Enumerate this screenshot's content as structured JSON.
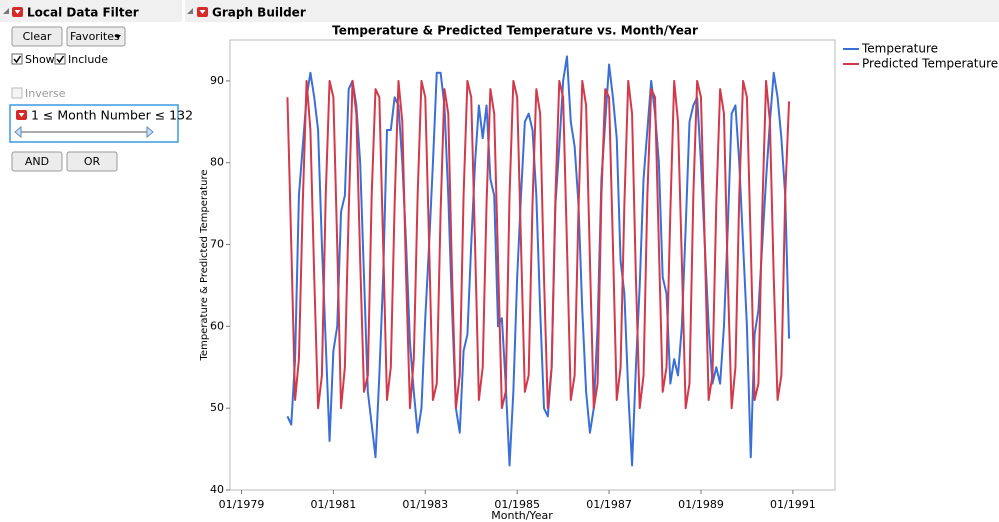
{
  "filter_panel": {
    "title": "Local Data Filter",
    "buttons": [
      "Clear",
      "Favorites"
    ],
    "show": "Show",
    "include": "Include",
    "inverse": "Inverse",
    "condition": "1 ≤ Month Number  ≤ 132",
    "logic_buttons": [
      "AND",
      "OR"
    ]
  },
  "graph_panel": {
    "title": "Graph Builder"
  },
  "chart_data": {
    "type": "line",
    "title": "Temperature & Predicted Temperature vs. Month/Year",
    "xlabel": "Month/Year",
    "ylabel": "Temperature & Predicted Temperature",
    "x": [
      "01/1980",
      "02/1980",
      "03/1980",
      "04/1980",
      "05/1980",
      "06/1980",
      "07/1980",
      "08/1980",
      "09/1980",
      "10/1980",
      "11/1980",
      "12/1980",
      "01/1981",
      "02/1981",
      "03/1981",
      "04/1981",
      "05/1981",
      "06/1981",
      "07/1981",
      "08/1981",
      "09/1981",
      "10/1981",
      "11/1981",
      "12/1981",
      "01/1982",
      "02/1982",
      "03/1982",
      "04/1982",
      "05/1982",
      "06/1982",
      "07/1982",
      "08/1982",
      "09/1982",
      "10/1982",
      "11/1982",
      "12/1982",
      "01/1983",
      "02/1983",
      "03/1983",
      "04/1983",
      "05/1983",
      "06/1983",
      "07/1983",
      "08/1983",
      "09/1983",
      "10/1983",
      "11/1983",
      "12/1983",
      "01/1984",
      "02/1984",
      "03/1984",
      "04/1984",
      "05/1984",
      "06/1984",
      "07/1984",
      "08/1984",
      "09/1984",
      "10/1984",
      "11/1984",
      "12/1984",
      "01/1985",
      "02/1985",
      "03/1985",
      "04/1985",
      "05/1985",
      "06/1985",
      "07/1985",
      "08/1985",
      "09/1985",
      "10/1985",
      "11/1985",
      "12/1985",
      "01/1986",
      "02/1986",
      "03/1986",
      "04/1986",
      "05/1986",
      "06/1986",
      "07/1986",
      "08/1986",
      "09/1986",
      "10/1986",
      "11/1986",
      "12/1986",
      "01/1987",
      "02/1987",
      "03/1987",
      "04/1987",
      "05/1987",
      "06/1987",
      "07/1987",
      "08/1987",
      "09/1987",
      "10/1987",
      "11/1987",
      "12/1987",
      "01/1988",
      "02/1988",
      "03/1988",
      "04/1988",
      "05/1988",
      "06/1988",
      "07/1988",
      "08/1988",
      "09/1988",
      "10/1988",
      "11/1988",
      "12/1988",
      "01/1989",
      "02/1989",
      "03/1989",
      "04/1989",
      "05/1989",
      "06/1989",
      "07/1989",
      "08/1989",
      "09/1989",
      "10/1989",
      "11/1989",
      "12/1989",
      "01/1990",
      "02/1990",
      "03/1990",
      "04/1990",
      "05/1990",
      "06/1990",
      "07/1990",
      "08/1990",
      "09/1990",
      "10/1990",
      "11/1990",
      "12/1990"
    ],
    "xlim": [
      "10/1978",
      "12/1991"
    ],
    "xticks": [
      "01/1979",
      "01/1981",
      "01/1983",
      "01/1985",
      "01/1987",
      "01/1989",
      "01/1991"
    ],
    "ylim": [
      40,
      95
    ],
    "yticks": [
      40,
      50,
      60,
      70,
      80,
      90
    ],
    "legend": "right",
    "series": [
      {
        "name": "Temperature",
        "color": "#3b6fd8",
        "values": [
          49,
          48,
          56,
          76,
          82,
          88,
          91,
          88,
          84,
          70,
          58,
          46,
          57,
          60,
          74,
          76,
          89,
          90,
          87,
          80,
          66,
          52,
          48,
          44,
          54,
          66,
          84,
          84,
          88,
          87,
          80,
          70,
          58,
          52,
          47,
          50,
          61,
          70,
          80,
          91,
          91,
          87,
          76,
          62,
          50,
          47,
          57,
          59,
          70,
          80,
          87,
          83,
          87,
          78,
          76,
          60,
          61,
          53,
          43,
          52,
          66,
          76,
          85,
          86,
          84,
          76,
          62,
          50,
          49,
          55,
          75,
          82,
          90,
          93,
          85,
          82,
          75,
          62,
          52,
          47,
          50,
          60,
          78,
          85,
          92,
          88,
          83,
          68,
          64,
          52,
          43,
          55,
          65,
          78,
          84,
          90,
          86,
          80,
          66,
          64,
          53,
          56,
          54,
          60,
          72,
          85,
          87,
          88,
          80,
          70,
          60,
          53,
          55,
          53,
          60,
          72,
          86,
          87,
          80,
          70,
          60,
          44,
          59,
          62,
          70,
          78,
          85,
          91,
          88,
          83,
          76,
          58.5
        ]
      },
      {
        "name": "Predicted Temperature",
        "color": "#d23a4c",
        "values": [
          88,
          70,
          51,
          56,
          75,
          90,
          84,
          66,
          50,
          54,
          76,
          90,
          88,
          70,
          50,
          55,
          74,
          90,
          86,
          68,
          52,
          54,
          76,
          89,
          88,
          70,
          51,
          55,
          75,
          90,
          85,
          66,
          50,
          56,
          76,
          90,
          88,
          70,
          51,
          53,
          74,
          89,
          86,
          66,
          50,
          54,
          76,
          90,
          88,
          70,
          51,
          55,
          75,
          89,
          86,
          68,
          50,
          52,
          76,
          90,
          88,
          70,
          52,
          54,
          75,
          89,
          86,
          66,
          50,
          55,
          76,
          90,
          88,
          70,
          51,
          54,
          74,
          90,
          87,
          68,
          50,
          53,
          76,
          89,
          88,
          70,
          51,
          55,
          75,
          90,
          86,
          66,
          50,
          54,
          76,
          89,
          88,
          70,
          52,
          55,
          74,
          90,
          85,
          68,
          50,
          53,
          76,
          90,
          88,
          70,
          51,
          54,
          75,
          89,
          86,
          66,
          50,
          55,
          76,
          90,
          88,
          70,
          51,
          53,
          74,
          90,
          85,
          66,
          51,
          54,
          76,
          87.5
        ]
      }
    ]
  }
}
